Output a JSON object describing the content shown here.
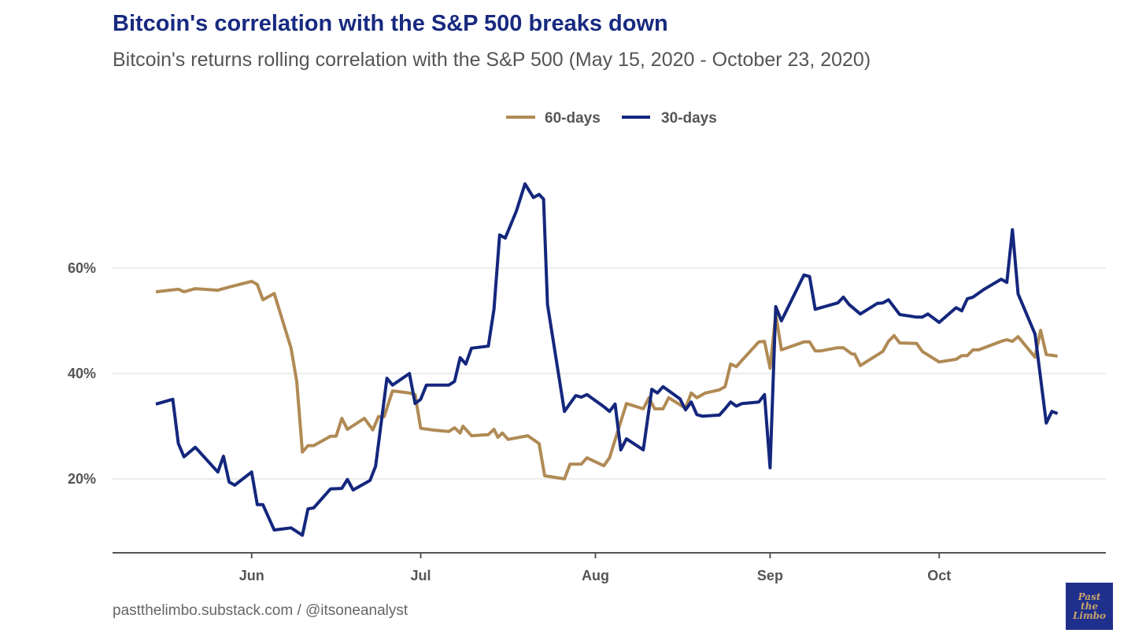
{
  "chart_data": {
    "type": "line",
    "title": "Bitcoin's correlation with the S&P 500 breaks down",
    "subtitle": "Bitcoin's returns rolling correlation with the S&P 500 (May 15, 2020 - October 23, 2020)",
    "x_unit": "days since 2020-05-15",
    "xlim": [
      0,
      161
    ],
    "ylim": [
      6,
      80
    ],
    "grid": true,
    "legend_position": "top",
    "xticks": [
      {
        "label": "Jun",
        "day": 17
      },
      {
        "label": "Jul",
        "day": 47
      },
      {
        "label": "Aug",
        "day": 78
      },
      {
        "label": "Sep",
        "day": 109
      },
      {
        "label": "Oct",
        "day": 139
      }
    ],
    "yticks": [
      {
        "label": "20%",
        "value": 20
      },
      {
        "label": "40%",
        "value": 40
      },
      {
        "label": "60%",
        "value": 60
      }
    ],
    "series": [
      {
        "name": "60-days",
        "color": "#b08a55",
        "points": [
          [
            0,
            55.5
          ],
          [
            4,
            56.0
          ],
          [
            5,
            55.5
          ],
          [
            7,
            56.1
          ],
          [
            11,
            55.8
          ],
          [
            13,
            56.4
          ],
          [
            17,
            57.5
          ],
          [
            18,
            56.9
          ],
          [
            19,
            54.0
          ],
          [
            21,
            55.2
          ],
          [
            24,
            44.8
          ],
          [
            25,
            38.5
          ],
          [
            26,
            25.1
          ],
          [
            27,
            26.3
          ],
          [
            28,
            26.3
          ],
          [
            31,
            28.1
          ],
          [
            32,
            28.1
          ],
          [
            33,
            31.5
          ],
          [
            34,
            29.4
          ],
          [
            37,
            31.5
          ],
          [
            38.5,
            29.3
          ],
          [
            39.5,
            31.8
          ],
          [
            40.5,
            31.8
          ],
          [
            42,
            36.7
          ],
          [
            45,
            36.3
          ],
          [
            46,
            36.0
          ],
          [
            47,
            29.6
          ],
          [
            49,
            29.3
          ],
          [
            52,
            29.0
          ],
          [
            53,
            29.7
          ],
          [
            54,
            28.7
          ],
          [
            54.5,
            30.0
          ],
          [
            56,
            28.2
          ],
          [
            59,
            28.4
          ],
          [
            60,
            29.4
          ],
          [
            60.7,
            27.9
          ],
          [
            61.5,
            28.7
          ],
          [
            62.5,
            27.5
          ],
          [
            66,
            28.2
          ],
          [
            68,
            26.7
          ],
          [
            69,
            20.6
          ],
          [
            72.5,
            20.0
          ],
          [
            73.5,
            22.8
          ],
          [
            75.5,
            22.8
          ],
          [
            76.5,
            24.0
          ],
          [
            79.5,
            22.5
          ],
          [
            80.5,
            24.0
          ],
          [
            83.5,
            34.3
          ],
          [
            86.5,
            33.3
          ],
          [
            87.5,
            35.4
          ],
          [
            88.5,
            33.3
          ],
          [
            90,
            33.3
          ],
          [
            91,
            35.4
          ],
          [
            94,
            33.4
          ],
          [
            95,
            36.3
          ],
          [
            96,
            35.4
          ],
          [
            97.5,
            36.3
          ],
          [
            100,
            36.9
          ],
          [
            101,
            37.5
          ],
          [
            102,
            41.8
          ],
          [
            103,
            41.3
          ],
          [
            104,
            42.5
          ],
          [
            107,
            46.0
          ],
          [
            108,
            46.1
          ],
          [
            109,
            41.0
          ],
          [
            110,
            51.3
          ],
          [
            111,
            44.5
          ],
          [
            115,
            46.0
          ],
          [
            116,
            46.0
          ],
          [
            117,
            44.3
          ],
          [
            118,
            44.3
          ],
          [
            121,
            44.9
          ],
          [
            122,
            44.9
          ],
          [
            123.5,
            43.7
          ],
          [
            124,
            43.7
          ],
          [
            125,
            41.5
          ],
          [
            129,
            44.2
          ],
          [
            130,
            46.1
          ],
          [
            131,
            47.2
          ],
          [
            132,
            45.8
          ],
          [
            135,
            45.7
          ],
          [
            136,
            44.2
          ],
          [
            139,
            42.2
          ],
          [
            142,
            42.7
          ],
          [
            143,
            43.4
          ],
          [
            144,
            43.4
          ],
          [
            145,
            44.5
          ],
          [
            146,
            44.5
          ],
          [
            150,
            46.1
          ],
          [
            151,
            46.4
          ],
          [
            152,
            46.1
          ],
          [
            153,
            47.0
          ],
          [
            156,
            43.1
          ],
          [
            157,
            48.2
          ],
          [
            158,
            43.6
          ],
          [
            160,
            43.3
          ]
        ]
      },
      {
        "name": "30-days",
        "color": "#14277d",
        "points": [
          [
            0,
            34.2
          ],
          [
            3,
            35.1
          ],
          [
            4,
            26.7
          ],
          [
            5,
            24.2
          ],
          [
            7,
            26.0
          ],
          [
            11,
            21.3
          ],
          [
            12,
            24.3
          ],
          [
            13,
            19.4
          ],
          [
            14,
            18.8
          ],
          [
            17,
            21.3
          ],
          [
            18,
            15.1
          ],
          [
            19,
            15.1
          ],
          [
            21,
            10.3
          ],
          [
            24,
            10.7
          ],
          [
            26,
            9.3
          ],
          [
            27,
            14.3
          ],
          [
            28,
            14.5
          ],
          [
            31,
            18.1
          ],
          [
            33,
            18.2
          ],
          [
            34,
            19.9
          ],
          [
            35,
            17.9
          ],
          [
            38,
            19.7
          ],
          [
            39,
            22.4
          ],
          [
            41,
            39.1
          ],
          [
            42,
            37.8
          ],
          [
            45,
            40.0
          ],
          [
            46,
            34.3
          ],
          [
            47,
            35.1
          ],
          [
            48,
            37.8
          ],
          [
            52,
            37.8
          ],
          [
            53,
            38.5
          ],
          [
            54,
            43.0
          ],
          [
            55,
            41.8
          ],
          [
            56,
            44.8
          ],
          [
            59,
            45.2
          ],
          [
            60,
            52.2
          ],
          [
            61,
            66.3
          ],
          [
            62,
            65.7
          ],
          [
            64,
            70.9
          ],
          [
            65.5,
            76.0
          ],
          [
            67,
            73.4
          ],
          [
            68,
            74.0
          ],
          [
            68.8,
            73.1
          ],
          [
            69.5,
            53.1
          ],
          [
            72.5,
            32.8
          ],
          [
            74.5,
            35.8
          ],
          [
            75.5,
            35.5
          ],
          [
            76.5,
            36.0
          ],
          [
            79.5,
            33.7
          ],
          [
            80.5,
            32.8
          ],
          [
            81.5,
            34.2
          ],
          [
            82.5,
            25.5
          ],
          [
            83.5,
            27.6
          ],
          [
            86.5,
            25.5
          ],
          [
            88,
            37.0
          ],
          [
            89,
            36.3
          ],
          [
            90,
            37.5
          ],
          [
            93,
            35.2
          ],
          [
            94,
            33.1
          ],
          [
            95,
            34.6
          ],
          [
            96,
            32.2
          ],
          [
            97,
            31.9
          ],
          [
            100,
            32.1
          ],
          [
            101,
            33.3
          ],
          [
            102,
            34.6
          ],
          [
            103,
            33.8
          ],
          [
            104,
            34.3
          ],
          [
            107,
            34.6
          ],
          [
            108,
            36.0
          ],
          [
            109,
            22.1
          ],
          [
            110,
            52.7
          ],
          [
            111,
            50.0
          ],
          [
            115,
            58.7
          ],
          [
            116,
            58.4
          ],
          [
            117,
            52.2
          ],
          [
            121,
            53.4
          ],
          [
            122,
            54.5
          ],
          [
            123,
            53.1
          ],
          [
            125,
            51.3
          ],
          [
            128,
            53.3
          ],
          [
            129,
            53.4
          ],
          [
            130,
            54.0
          ],
          [
            132,
            51.2
          ],
          [
            135,
            50.7
          ],
          [
            136,
            50.7
          ],
          [
            137,
            51.3
          ],
          [
            139,
            49.7
          ],
          [
            142,
            52.5
          ],
          [
            143,
            51.9
          ],
          [
            144,
            54.2
          ],
          [
            145,
            54.5
          ],
          [
            147,
            56.0
          ],
          [
            150,
            57.9
          ],
          [
            151,
            57.3
          ],
          [
            152,
            67.3
          ],
          [
            153,
            55.1
          ],
          [
            156,
            47.5
          ],
          [
            158,
            30.6
          ],
          [
            159,
            32.8
          ],
          [
            160,
            32.4
          ]
        ]
      }
    ]
  },
  "footer": "pastthelimbo.substack.com / @itsoneanalyst",
  "logo": {
    "line1": "Past",
    "line2": "the",
    "line3": "Limbo"
  }
}
